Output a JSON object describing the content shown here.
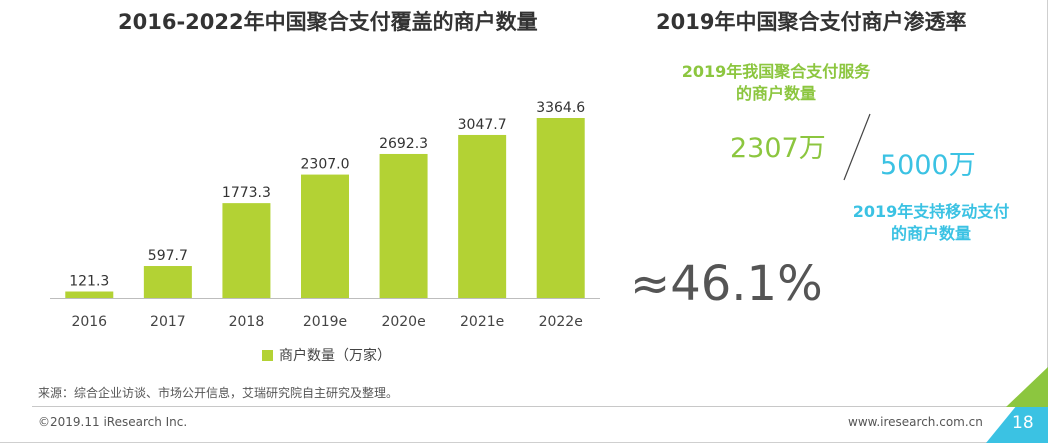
{
  "left_title": "2016-2022年中国聚合支付覆盖的商户数量",
  "right_title": "2019年中国聚合支付商户渗透率",
  "chart_data": {
    "type": "bar",
    "title": "2016-2022年中国聚合支付覆盖的商户数量",
    "categories": [
      "2016",
      "2017",
      "2018",
      "2019e",
      "2020e",
      "2021e",
      "2022e"
    ],
    "series": [
      {
        "name": "商户数量（万家）",
        "values": [
          121.3,
          597.7,
          1773.3,
          2307.0,
          2692.3,
          3047.7,
          3364.6
        ]
      }
    ],
    "value_labels": [
      "121.3",
      "597.7",
      "1773.3",
      "2307.0",
      "2692.3",
      "3047.7",
      "3364.6"
    ],
    "ylim": [
      0,
      3364.6
    ],
    "grid": false,
    "legend_position": "bottom",
    "bar_color": "#b3d234"
  },
  "penetration": {
    "pay_label_line1": "2019年我国聚合支付服务",
    "pay_label_line2": "的商户数量",
    "pay_value": "2307万",
    "support_value": "5000万",
    "support_label_line1": "2019年支持移动支付",
    "support_label_line2": "的商户数量",
    "ratio": "≈46.1%",
    "pay_color": "#8cc63f",
    "support_color": "#3bc2e3"
  },
  "footer": {
    "source": "来源：综合企业访谈、市场公开信息，艾瑞研究院自主研究及整理。",
    "copyright": "©2019.11 iResearch Inc.",
    "website": "www.iresearch.com.cn",
    "page_number": "18"
  }
}
